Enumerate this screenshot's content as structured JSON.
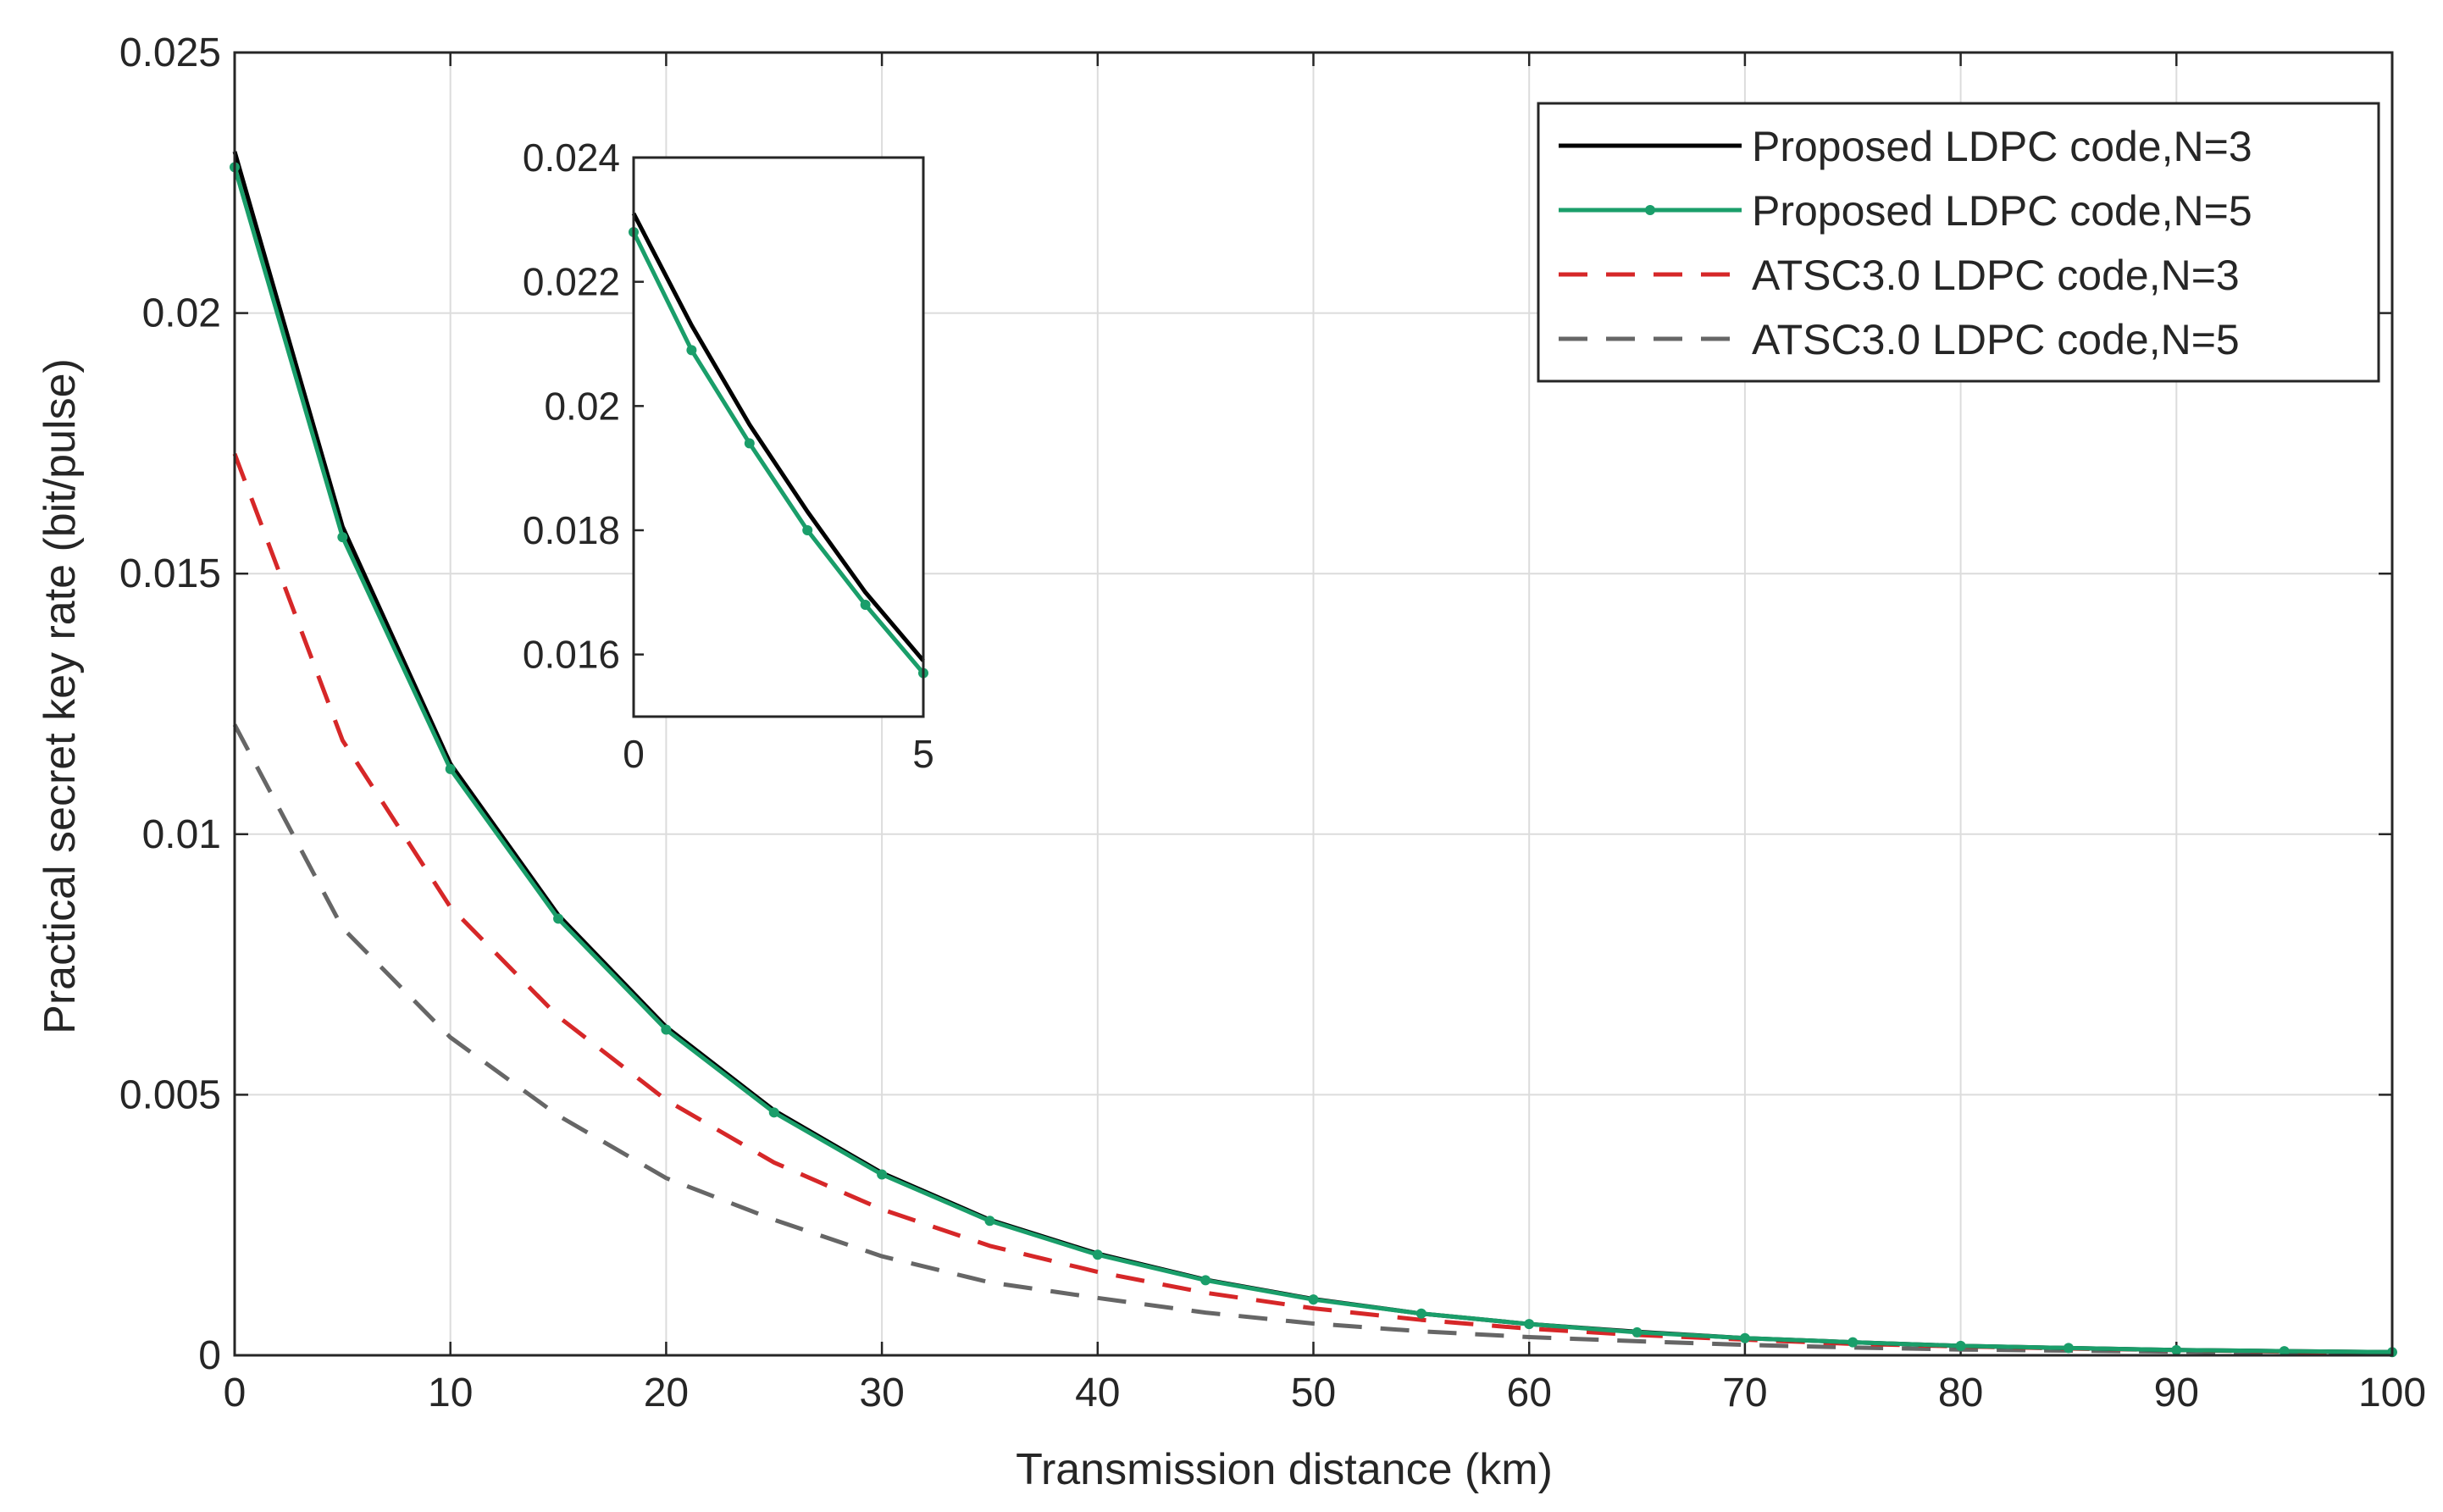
{
  "chart_data": [
    {
      "id": "main",
      "type": "line",
      "title": "",
      "xlabel": "Transmission distance (km)",
      "ylabel": "Practical secret key rate (bit/pulse)",
      "xlim": [
        0,
        100
      ],
      "ylim": [
        0,
        0.025
      ],
      "xticks": [
        0,
        10,
        20,
        30,
        40,
        50,
        60,
        70,
        80,
        90,
        100
      ],
      "xtick_labels": [
        "0",
        "10",
        "20",
        "30",
        "40",
        "50",
        "60",
        "70",
        "80",
        "90",
        "100"
      ],
      "yticks": [
        0,
        0.005,
        0.01,
        0.015,
        0.02,
        0.025
      ],
      "ytick_labels": [
        "0",
        "0.005",
        "0.01",
        "0.015",
        "0.02",
        "0.025"
      ],
      "grid": true,
      "legend_position": "top-right",
      "x": [
        0,
        5,
        10,
        15,
        20,
        25,
        30,
        35,
        40,
        45,
        50,
        55,
        60,
        65,
        70,
        75,
        80,
        85,
        90,
        95,
        100
      ],
      "series": [
        {
          "name": "Proposed LDPC code,N=3",
          "color": "#000000",
          "style": "solid",
          "markers": false,
          "values": [
            0.0231,
            0.0159,
            0.01135,
            0.00845,
            0.0063,
            0.0047,
            0.0035,
            0.0026,
            0.00195,
            0.00145,
            0.00108,
            0.0008,
            0.0006,
            0.00045,
            0.00033,
            0.00025,
            0.00018,
            0.00014,
            0.0001,
            8e-05,
            6e-05
          ]
        },
        {
          "name": "Proposed LDPC code,N=5",
          "color": "#1a9e6a",
          "style": "solid",
          "markers": true,
          "values": [
            0.0228,
            0.0157,
            0.01125,
            0.00838,
            0.00625,
            0.00466,
            0.00347,
            0.00258,
            0.00193,
            0.00144,
            0.00107,
            0.0008,
            0.0006,
            0.00044,
            0.00033,
            0.00025,
            0.00018,
            0.00014,
            0.0001,
            8e-05,
            6e-05
          ]
        },
        {
          "name": "ATSC3.0 LDPC code,N=3",
          "color": "#d62728",
          "style": "dashed",
          "markers": false,
          "values": [
            0.0173,
            0.0118,
            0.0086,
            0.0065,
            0.0049,
            0.0037,
            0.0028,
            0.0021,
            0.0016,
            0.0012,
            0.0009,
            0.00068,
            0.00051,
            0.00039,
            0.0003,
            0.00022,
            0.00017,
            0.00013,
            0.0001,
            7e-05,
            5e-05
          ]
        },
        {
          "name": "ATSC3.0 LDPC code,N=5",
          "color": "#666666",
          "style": "dashed",
          "markers": false,
          "values": [
            0.0121,
            0.0082,
            0.0061,
            0.0046,
            0.0034,
            0.0026,
            0.0019,
            0.0014,
            0.0011,
            0.00082,
            0.00061,
            0.00046,
            0.00035,
            0.00027,
            0.0002,
            0.00015,
            0.00011,
            9e-05,
            7e-05,
            5e-05,
            4e-05
          ]
        }
      ]
    },
    {
      "id": "inset",
      "type": "line",
      "title": "",
      "xlim": [
        0,
        5
      ],
      "ylim": [
        0.015,
        0.024
      ],
      "xticks": [
        0,
        5
      ],
      "xtick_labels": [
        "0",
        "5"
      ],
      "yticks": [
        0.016,
        0.018,
        0.02,
        0.022,
        0.024
      ],
      "ytick_labels": [
        "0.016",
        "0.018",
        "0.02",
        "0.022",
        "0.024"
      ],
      "grid": false,
      "x": [
        0,
        1,
        2,
        3,
        4,
        5
      ],
      "series": [
        {
          "name": "Proposed LDPC code,N=3",
          "color": "#000000",
          "style": "solid",
          "markers": false,
          "values": [
            0.0231,
            0.0213,
            0.0197,
            0.0183,
            0.017,
            0.0159
          ]
        },
        {
          "name": "Proposed LDPC code,N=5",
          "color": "#1a9e6a",
          "style": "solid",
          "markers": true,
          "values": [
            0.0228,
            0.0209,
            0.0194,
            0.018,
            0.0168,
            0.0157
          ]
        }
      ]
    }
  ]
}
